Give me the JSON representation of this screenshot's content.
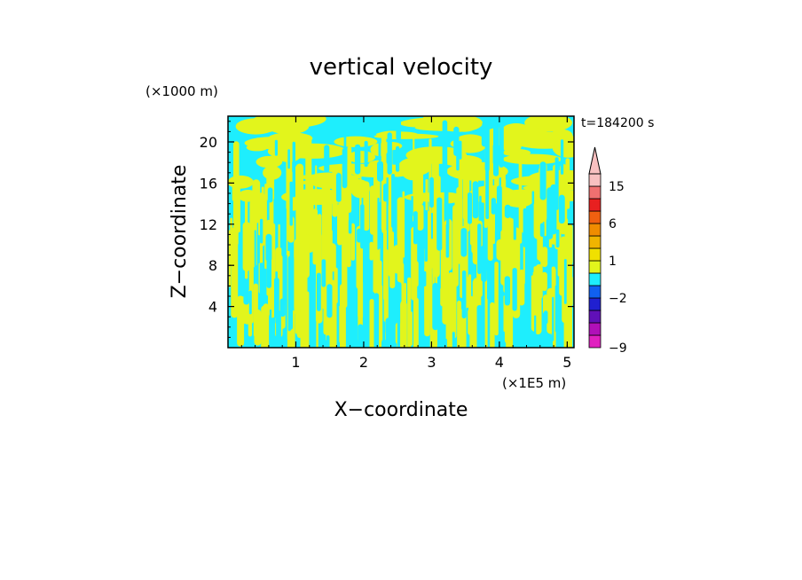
{
  "chart_data": {
    "type": "heatmap",
    "title": "vertical velocity",
    "xlabel": "X−coordinate",
    "ylabel": "Z−coordinate",
    "x_units": "(×1E5 m)",
    "y_units": "(×1000 m)",
    "time_label": "t=184200 s",
    "xlim": [
      0,
      5.1
    ],
    "ylim": [
      0,
      22.5
    ],
    "x_ticks": [
      1,
      2,
      3,
      4,
      5
    ],
    "x_tick_labels": [
      "1",
      "2",
      "3",
      "4",
      "5"
    ],
    "y_ticks": [
      4,
      8,
      12,
      16,
      20
    ],
    "y_tick_labels": [
      "4",
      "8",
      "12",
      "16",
      "20"
    ],
    "field_colors": {
      "positive": "#e2f51c",
      "negative": "#1eeefd"
    },
    "colorbar": {
      "levels": [
        -9,
        -6,
        -4,
        -3,
        -2,
        -1,
        0,
        1,
        2,
        4,
        6,
        9,
        12,
        15,
        20
      ],
      "colors": [
        "#e020c0",
        "#b010b8",
        "#6010b8",
        "#2020d0",
        "#1060f0",
        "#1eeefd",
        "#e2f51c",
        "#f0e000",
        "#f0b400",
        "#f08c00",
        "#f06010",
        "#e82020",
        "#f07070",
        "#f8c0c0"
      ],
      "tick_labels": [
        {
          "value": 15,
          "label": "15"
        },
        {
          "value": 6,
          "label": "6"
        },
        {
          "value": 1,
          "label": "1"
        },
        {
          "value": -2,
          "label": "−2"
        },
        {
          "value": -9,
          "label": "−9"
        }
      ],
      "extend": "max"
    }
  }
}
